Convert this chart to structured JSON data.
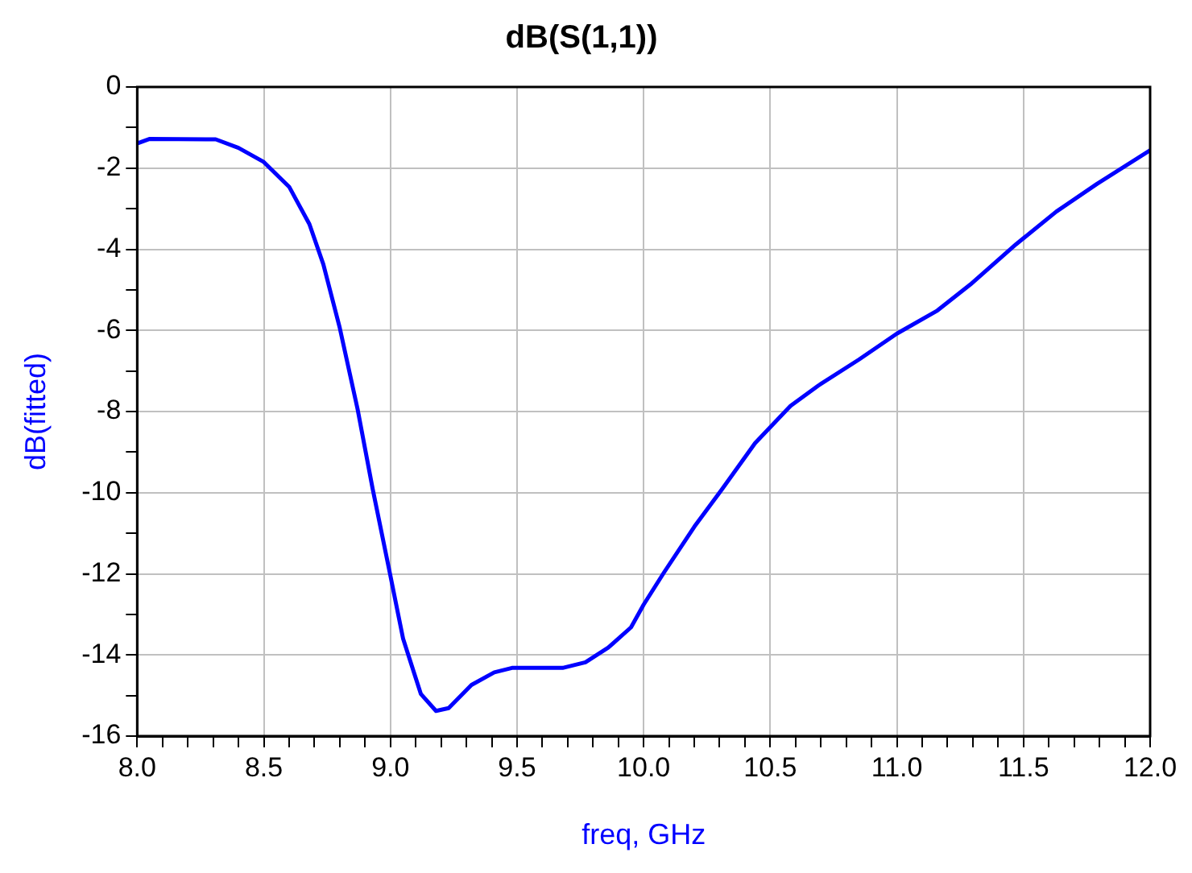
{
  "chart_data": {
    "type": "line",
    "title": "dB(S(1,1))",
    "xlabel": "freq, GHz",
    "ylabel": "dB(fitted)",
    "xlim": [
      8,
      12
    ],
    "ylim": [
      -16,
      0
    ],
    "xticks": [
      {
        "value": 8,
        "label": "8.0"
      },
      {
        "value": 8.1,
        "label": null
      },
      {
        "value": 8.2,
        "label": null
      },
      {
        "value": 8.3,
        "label": null
      },
      {
        "value": 8.4,
        "label": null
      },
      {
        "value": 8.5,
        "label": "8.5"
      },
      {
        "value": 8.6,
        "label": null
      },
      {
        "value": 8.7,
        "label": null
      },
      {
        "value": 8.8,
        "label": null
      },
      {
        "value": 8.9,
        "label": null
      },
      {
        "value": 9,
        "label": "9.0"
      },
      {
        "value": 9.1,
        "label": null
      },
      {
        "value": 9.2,
        "label": null
      },
      {
        "value": 9.3,
        "label": null
      },
      {
        "value": 9.4,
        "label": null
      },
      {
        "value": 9.5,
        "label": "9.5"
      },
      {
        "value": 9.6,
        "label": null
      },
      {
        "value": 9.7,
        "label": null
      },
      {
        "value": 9.8,
        "label": null
      },
      {
        "value": 9.9,
        "label": null
      },
      {
        "value": 10,
        "label": "10.0"
      },
      {
        "value": 10.1,
        "label": null
      },
      {
        "value": 10.2,
        "label": null
      },
      {
        "value": 10.3,
        "label": null
      },
      {
        "value": 10.4,
        "label": null
      },
      {
        "value": 10.5,
        "label": "10.5"
      },
      {
        "value": 10.6,
        "label": null
      },
      {
        "value": 10.7,
        "label": null
      },
      {
        "value": 10.8,
        "label": null
      },
      {
        "value": 10.9,
        "label": null
      },
      {
        "value": 11,
        "label": "11.0"
      },
      {
        "value": 11.1,
        "label": null
      },
      {
        "value": 11.2,
        "label": null
      },
      {
        "value": 11.3,
        "label": null
      },
      {
        "value": 11.4,
        "label": null
      },
      {
        "value": 11.5,
        "label": "11.5"
      },
      {
        "value": 11.6,
        "label": null
      },
      {
        "value": 11.7,
        "label": null
      },
      {
        "value": 11.8,
        "label": null
      },
      {
        "value": 11.9,
        "label": null
      },
      {
        "value": 12,
        "label": "12.0"
      }
    ],
    "yticks": [
      -16,
      {
        "value": -15,
        "label": null
      },
      -14,
      {
        "value": -13,
        "label": null
      },
      -12,
      {
        "value": -11,
        "label": null
      },
      -10,
      {
        "value": -9,
        "label": null
      },
      -8,
      {
        "value": -7,
        "label": null
      },
      -6,
      {
        "value": -5,
        "label": null
      },
      -4,
      {
        "value": -3,
        "label": null
      },
      -2,
      {
        "value": -1,
        "label": null
      },
      0
    ],
    "grid": true,
    "marker": "none",
    "line_style": "solid",
    "series": [
      {
        "color": "#0000ff",
        "x": [
          8.0,
          8.05,
          8.31,
          8.4,
          8.5,
          8.6,
          8.68,
          8.735,
          8.8,
          8.87,
          8.93,
          9.0,
          9.05,
          9.12,
          9.18,
          9.23,
          9.32,
          9.41,
          9.48,
          9.68,
          9.77,
          9.86,
          9.95,
          10.0,
          10.08,
          10.2,
          10.31,
          10.44,
          10.58,
          10.69,
          10.85,
          11.0,
          11.16,
          11.29,
          11.47,
          11.63,
          11.79,
          12.0
        ],
        "values": [
          -1.39,
          -1.28,
          -1.29,
          -1.5,
          -1.85,
          -2.46,
          -3.38,
          -4.37,
          -5.94,
          -7.93,
          -9.91,
          -12.05,
          -13.6,
          -14.96,
          -15.38,
          -15.31,
          -14.74,
          -14.43,
          -14.32,
          -14.32,
          -14.18,
          -13.82,
          -13.32,
          -12.76,
          -11.97,
          -10.84,
          -9.91,
          -8.78,
          -7.86,
          -7.36,
          -6.72,
          -6.08,
          -5.51,
          -4.87,
          -3.88,
          -3.07,
          -2.39,
          -1.56
        ]
      }
    ]
  }
}
